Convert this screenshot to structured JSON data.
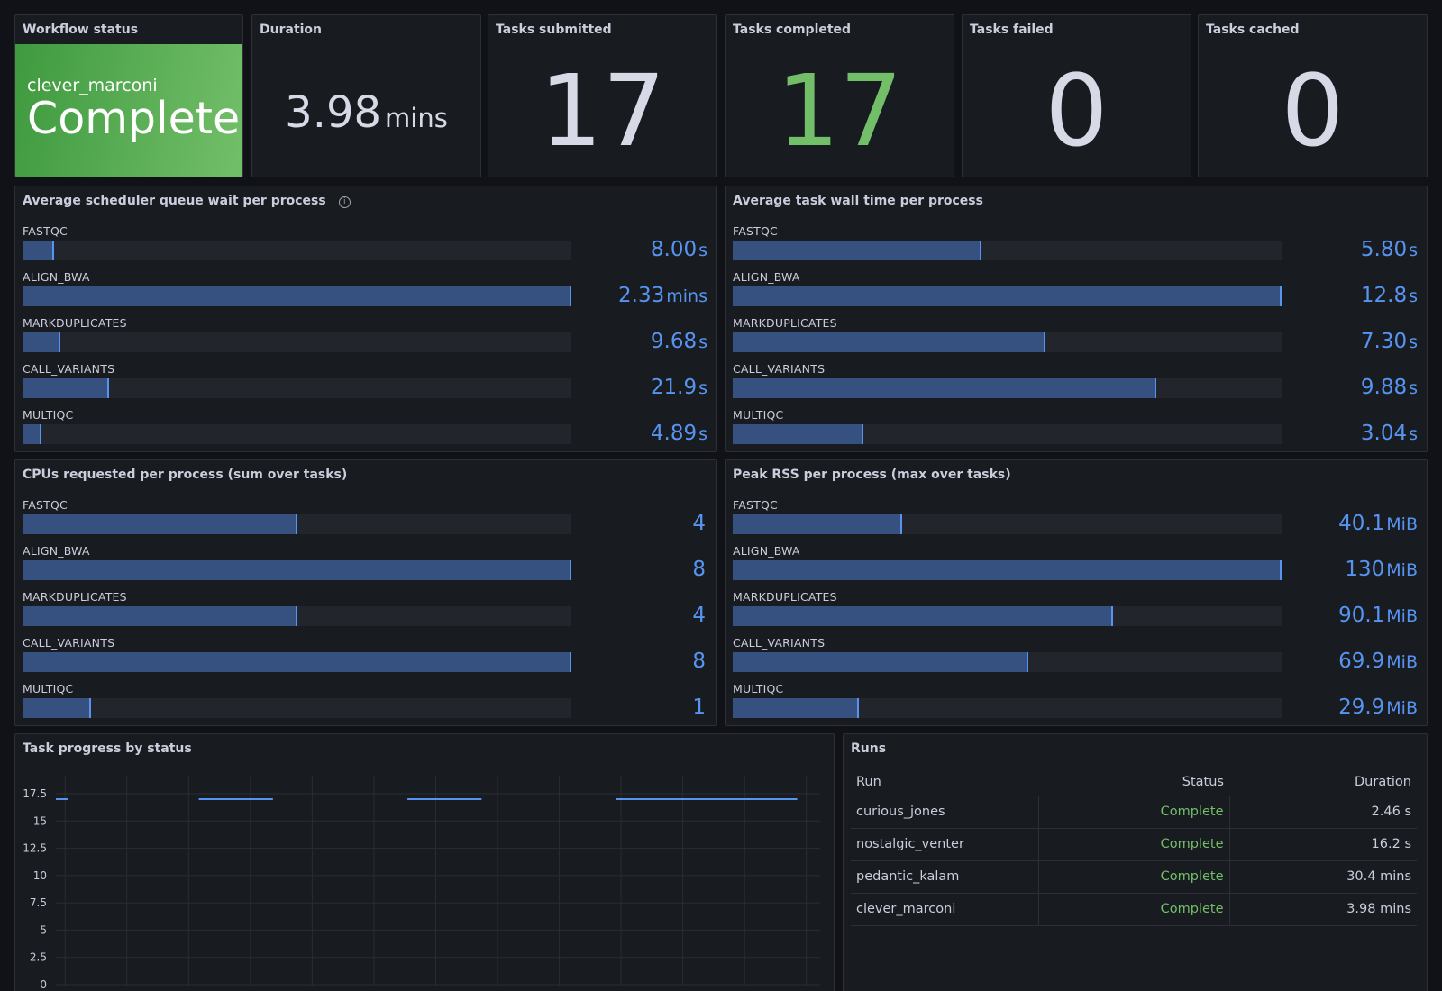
{
  "stats": {
    "workflow_status": {
      "title": "Workflow status",
      "run_name": "clever_marconi",
      "state": "Complete"
    },
    "duration": {
      "title": "Duration",
      "value": "3.98",
      "unit": "mins"
    },
    "tasks_submitted": {
      "title": "Tasks submitted",
      "value": "17"
    },
    "tasks_completed": {
      "title": "Tasks completed",
      "value": "17"
    },
    "tasks_failed": {
      "title": "Tasks failed",
      "value": "0"
    },
    "tasks_cached": {
      "title": "Tasks cached",
      "value": "0"
    }
  },
  "queue_wait": {
    "title": "Average scheduler queue wait per process",
    "info_icon": "i",
    "rows": [
      {
        "label": "FASTQC",
        "value": "8.00",
        "unit": "s",
        "fraction": 0.057
      },
      {
        "label": "ALIGN_BWA",
        "value": "2.33",
        "unit": "mins",
        "fraction": 1.0
      },
      {
        "label": "MARKDUPLICATES",
        "value": "9.68",
        "unit": "s",
        "fraction": 0.069
      },
      {
        "label": "CALL_VARIANTS",
        "value": "21.9",
        "unit": "s",
        "fraction": 0.157
      },
      {
        "label": "MULTIQC",
        "value": "4.89",
        "unit": "s",
        "fraction": 0.035
      }
    ]
  },
  "wall_time": {
    "title": "Average task wall time per process",
    "rows": [
      {
        "label": "FASTQC",
        "value": "5.80",
        "unit": "s",
        "fraction": 0.453
      },
      {
        "label": "ALIGN_BWA",
        "value": "12.8",
        "unit": "s",
        "fraction": 1.0
      },
      {
        "label": "MARKDUPLICATES",
        "value": "7.30",
        "unit": "s",
        "fraction": 0.57
      },
      {
        "label": "CALL_VARIANTS",
        "value": "9.88",
        "unit": "s",
        "fraction": 0.772
      },
      {
        "label": "MULTIQC",
        "value": "3.04",
        "unit": "s",
        "fraction": 0.238
      }
    ]
  },
  "cpus": {
    "title": "CPUs requested per process (sum over tasks)",
    "rows": [
      {
        "label": "FASTQC",
        "value": "4",
        "unit": "",
        "fraction": 0.5
      },
      {
        "label": "ALIGN_BWA",
        "value": "8",
        "unit": "",
        "fraction": 1.0
      },
      {
        "label": "MARKDUPLICATES",
        "value": "4",
        "unit": "",
        "fraction": 0.5
      },
      {
        "label": "CALL_VARIANTS",
        "value": "8",
        "unit": "",
        "fraction": 1.0
      },
      {
        "label": "MULTIQC",
        "value": "1",
        "unit": "",
        "fraction": 0.125
      }
    ]
  },
  "peak_rss": {
    "title": "Peak RSS per process (max over tasks)",
    "rows": [
      {
        "label": "FASTQC",
        "value": "40.1",
        "unit": "MiB",
        "fraction": 0.308
      },
      {
        "label": "ALIGN_BWA",
        "value": "130",
        "unit": "MiB",
        "fraction": 1.0
      },
      {
        "label": "MARKDUPLICATES",
        "value": "90.1",
        "unit": "MiB",
        "fraction": 0.693
      },
      {
        "label": "CALL_VARIANTS",
        "value": "69.9",
        "unit": "MiB",
        "fraction": 0.538
      },
      {
        "label": "MULTIQC",
        "value": "29.9",
        "unit": "MiB",
        "fraction": 0.23
      }
    ]
  },
  "task_progress": {
    "title": "Task progress by status"
  },
  "runs": {
    "title": "Runs",
    "columns": [
      "Run",
      "Status",
      "Duration"
    ],
    "rows": [
      {
        "run": "curious_jones",
        "status": "Complete",
        "duration": "2.46 s"
      },
      {
        "run": "nostalgic_venter",
        "status": "Complete",
        "duration": "16.2 s"
      },
      {
        "run": "pedantic_kalam",
        "status": "Complete",
        "duration": "30.4 mins"
      },
      {
        "run": "clever_marconi",
        "status": "Complete",
        "duration": "3.98 mins"
      }
    ]
  },
  "colors": {
    "background": "#111217",
    "panel": "#181b1f",
    "bar_fill": "#36507f",
    "bar_accent": "#5794f2",
    "ok_green": "#73bf69"
  },
  "chart_data": {
    "type": "line",
    "title": "Task progress by status",
    "yticks": [
      "17.5",
      "15",
      "12.5",
      "10",
      "7.5",
      "5",
      "2.5",
      "0"
    ],
    "ylim": [
      0,
      17.5
    ],
    "grid": true,
    "series": [
      {
        "segments": [
          [
            0.0,
            0.016,
            17
          ],
          [
            0.187,
            0.284,
            17
          ],
          [
            0.46,
            0.557,
            17
          ],
          [
            0.733,
            0.97,
            17
          ]
        ]
      }
    ]
  }
}
